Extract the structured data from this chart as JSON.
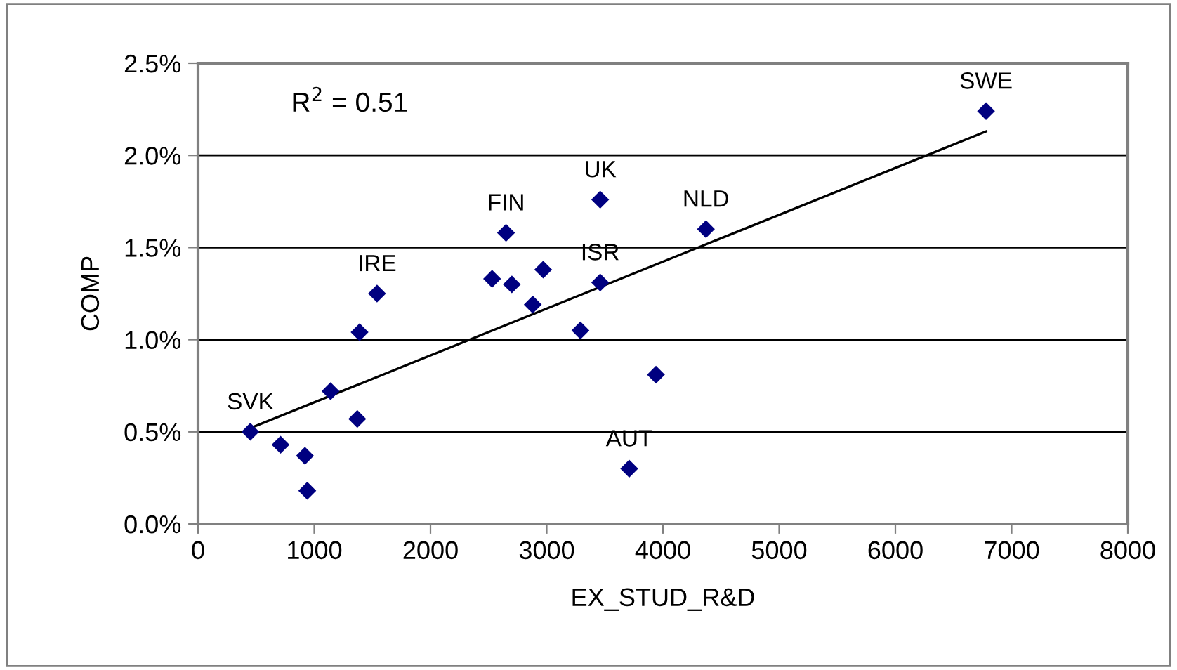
{
  "chart_data": {
    "type": "scatter",
    "xlabel": "EX_STUD_R&D",
    "ylabel": "COMP",
    "xlim": [
      0,
      8000
    ],
    "xticks": [
      0,
      1000,
      2000,
      3000,
      4000,
      5000,
      6000,
      7000,
      8000
    ],
    "ylim": [
      0,
      2.5
    ],
    "yticks": [
      {
        "value": 0,
        "label": "0.0%"
      },
      {
        "value": 0.5,
        "label": "0.5%"
      },
      {
        "value": 1.0,
        "label": "1.0%"
      },
      {
        "value": 1.5,
        "label": "1.5%"
      },
      {
        "value": 2.0,
        "label": "2.0%"
      },
      {
        "value": 2.5,
        "label": "2.5%"
      }
    ],
    "grid": "y",
    "legend": false,
    "series": [
      {
        "marker": "diamond",
        "color": "#000080",
        "x": [
          450,
          710,
          920,
          940,
          1140,
          1370,
          1390,
          1540,
          2530,
          2650,
          2700,
          2880,
          2970,
          3290,
          3460,
          3460,
          3710,
          3940,
          4370,
          6780
        ],
        "values": [
          0.5,
          0.43,
          0.37,
          0.18,
          0.72,
          0.57,
          1.04,
          1.25,
          1.33,
          1.58,
          1.3,
          1.19,
          1.38,
          1.05,
          1.76,
          1.31,
          0.3,
          0.81,
          1.6,
          2.24
        ]
      },
      {
        "type": "line",
        "marker": "none",
        "color": "#000000",
        "x": [
          450,
          6780
        ],
        "values": [
          0.52,
          2.13
        ]
      }
    ],
    "annotations": [
      "R$^{2}$ = 0.51",
      {
        "text": "SVK",
        "x": 450,
        "y": 0.5
      },
      {
        "text": "IRE",
        "x": 1540,
        "y": 1.25
      },
      {
        "text": "FIN",
        "x": 2650,
        "y": 1.58
      },
      {
        "text": "UK",
        "x": 3460,
        "y": 1.76
      },
      {
        "text": "ISR",
        "x": 3460,
        "y": 1.31
      },
      {
        "text": "AUT",
        "x": 3710,
        "y": 0.3
      },
      {
        "text": "NLD",
        "x": 4370,
        "y": 1.6
      },
      {
        "text": "SWE",
        "x": 6780,
        "y": 2.24
      }
    ]
  }
}
